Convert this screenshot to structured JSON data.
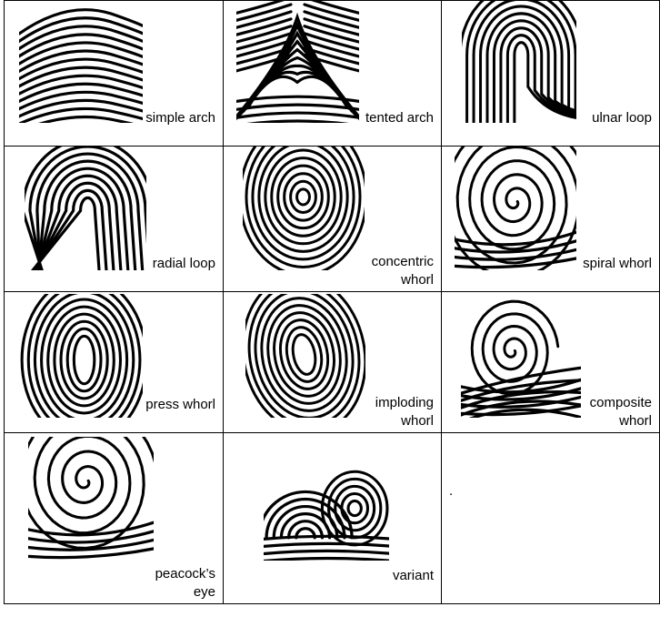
{
  "cells": [
    {
      "label": "simple arch",
      "pattern": "arch"
    },
    {
      "label": "tented arch",
      "pattern": "tented"
    },
    {
      "label": "ulnar loop",
      "pattern": "loop-left"
    },
    {
      "label": "radial loop",
      "pattern": "loop-right"
    },
    {
      "label": "concentric\nwhorl",
      "pattern": "concentric"
    },
    {
      "label": "spiral whorl",
      "pattern": "spiral"
    },
    {
      "label": "press whorl",
      "pattern": "press"
    },
    {
      "label": "imploding\nwhorl",
      "pattern": "imploding"
    },
    {
      "label": "composite\nwhorl",
      "pattern": "composite"
    },
    {
      "label": "peacock’s\neye",
      "pattern": "peacock"
    },
    {
      "label": "variant",
      "pattern": "variant"
    },
    {
      "label": ".",
      "pattern": "none"
    }
  ]
}
